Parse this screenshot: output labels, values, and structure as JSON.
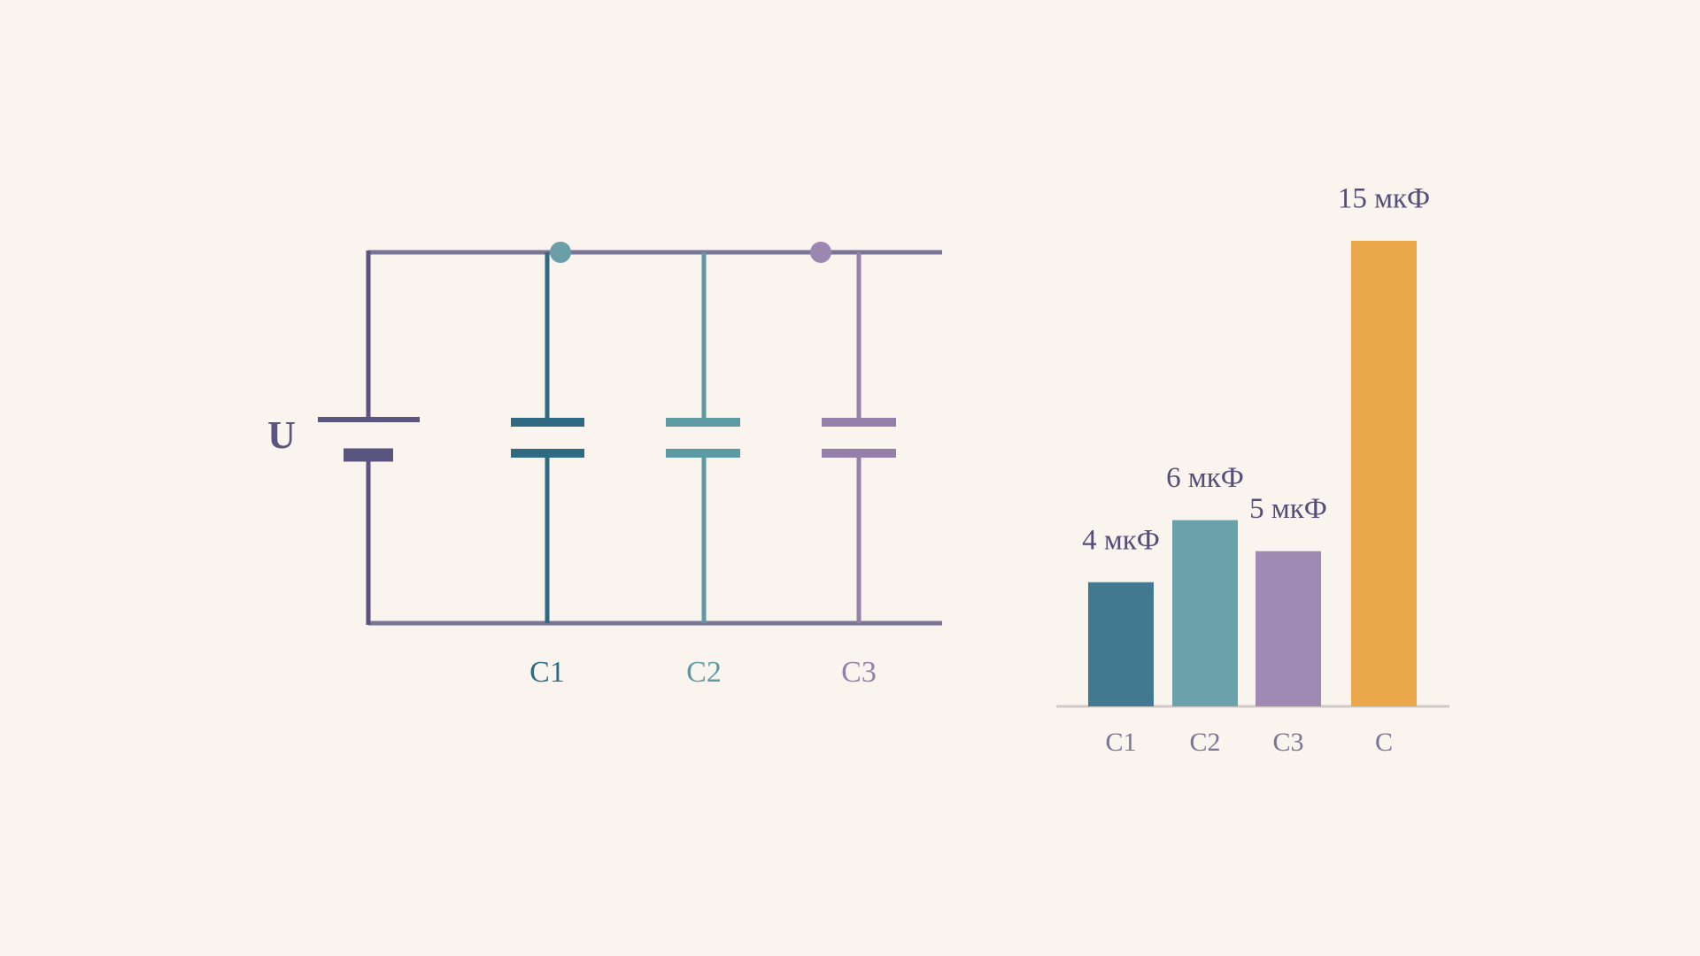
{
  "circuit": {
    "source_label": "U",
    "capacitors": [
      "C1",
      "C2",
      "C3"
    ]
  },
  "chart_data": {
    "type": "bar",
    "categories": [
      "C1",
      "C2",
      "C3",
      "C"
    ],
    "values": [
      4,
      6,
      5,
      15
    ],
    "value_labels": [
      "4 мкФ",
      "6 мкФ",
      "5 мкФ",
      "15 мкФ"
    ],
    "colors": [
      "#427890",
      "#6ba1aa",
      "#9e8ab2",
      "#eba84a"
    ]
  }
}
